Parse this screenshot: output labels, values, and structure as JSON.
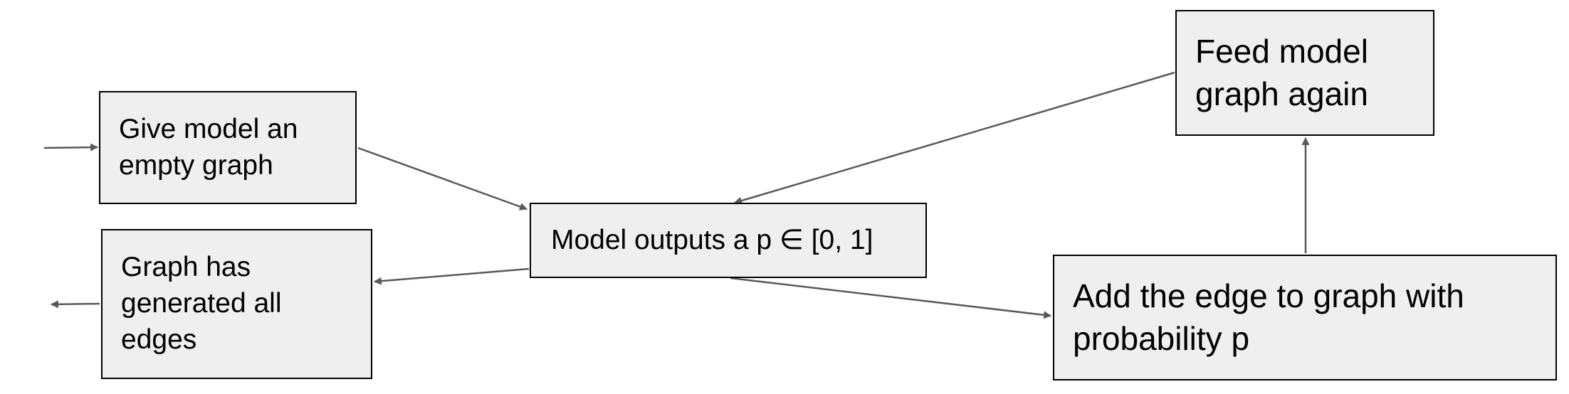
{
  "colors": {
    "node_fill": "#efefef",
    "node_border": "#000000",
    "arrow": "#595959",
    "text": "#000000"
  },
  "nodes": {
    "give_model": {
      "text": "Give model an empty graph"
    },
    "model_outputs": {
      "text": "Model outputs a p ∈ [0, 1]"
    },
    "graph_done": {
      "text": "Graph has generated all edges"
    },
    "add_edge": {
      "text": "Add the edge to graph with probability p"
    },
    "feed_again": {
      "text": "Feed model graph again"
    }
  },
  "edges": [
    {
      "from": "start",
      "to": "give_model"
    },
    {
      "from": "give_model",
      "to": "model_outputs"
    },
    {
      "from": "model_outputs",
      "to": "graph_done"
    },
    {
      "from": "graph_done",
      "to": "end"
    },
    {
      "from": "model_outputs",
      "to": "add_edge"
    },
    {
      "from": "add_edge",
      "to": "feed_again"
    },
    {
      "from": "feed_again",
      "to": "model_outputs"
    }
  ]
}
